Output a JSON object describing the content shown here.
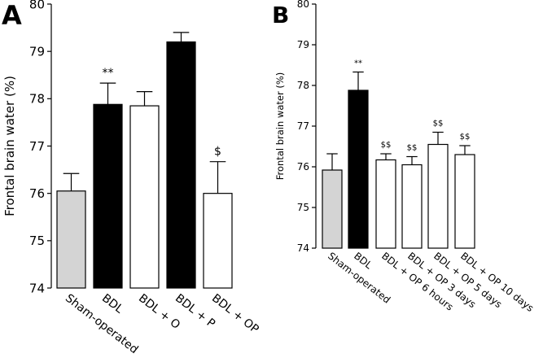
{
  "chart_data": [
    {
      "type": "bar",
      "panel_label": "A",
      "ylabel": "Frontal brain water (%)",
      "ylim": [
        74,
        80
      ],
      "yticks": [
        "74",
        "75",
        "76",
        "77",
        "78",
        "79",
        "80"
      ],
      "categories": [
        "Sham-operated",
        "BDL",
        "BDL + O",
        "BDL + P",
        "BDL + OP"
      ],
      "values": [
        76.05,
        77.88,
        77.85,
        79.2,
        76.0
      ],
      "errors": [
        0.37,
        0.45,
        0.3,
        0.2,
        0.67
      ],
      "fills": [
        "#d4d4d4",
        "#000000",
        "#ffffff",
        "#000000",
        "#ffffff"
      ],
      "annotations": [
        "",
        "**",
        "",
        "",
        "$"
      ]
    },
    {
      "type": "bar",
      "panel_label": "B",
      "ylabel": "Frontal brain water (%)",
      "ylim": [
        74,
        80
      ],
      "yticks": [
        "74",
        "75",
        "76",
        "77",
        "78",
        "79",
        "80"
      ],
      "categories": [
        "Sham-operated",
        "BDL",
        "BDL + OP 6 hours",
        "BDL + OP 3 days",
        "BDL + OP 5 days",
        "BDL + OP 10 days"
      ],
      "values": [
        75.92,
        77.88,
        76.17,
        76.05,
        76.55,
        76.3
      ],
      "errors": [
        0.4,
        0.45,
        0.15,
        0.2,
        0.3,
        0.22
      ],
      "fills": [
        "#d4d4d4",
        "#000000",
        "#ffffff",
        "#ffffff",
        "#ffffff",
        "#ffffff"
      ],
      "annotations": [
        "",
        "**",
        "$$",
        "$$",
        "$$",
        "$$"
      ]
    }
  ]
}
